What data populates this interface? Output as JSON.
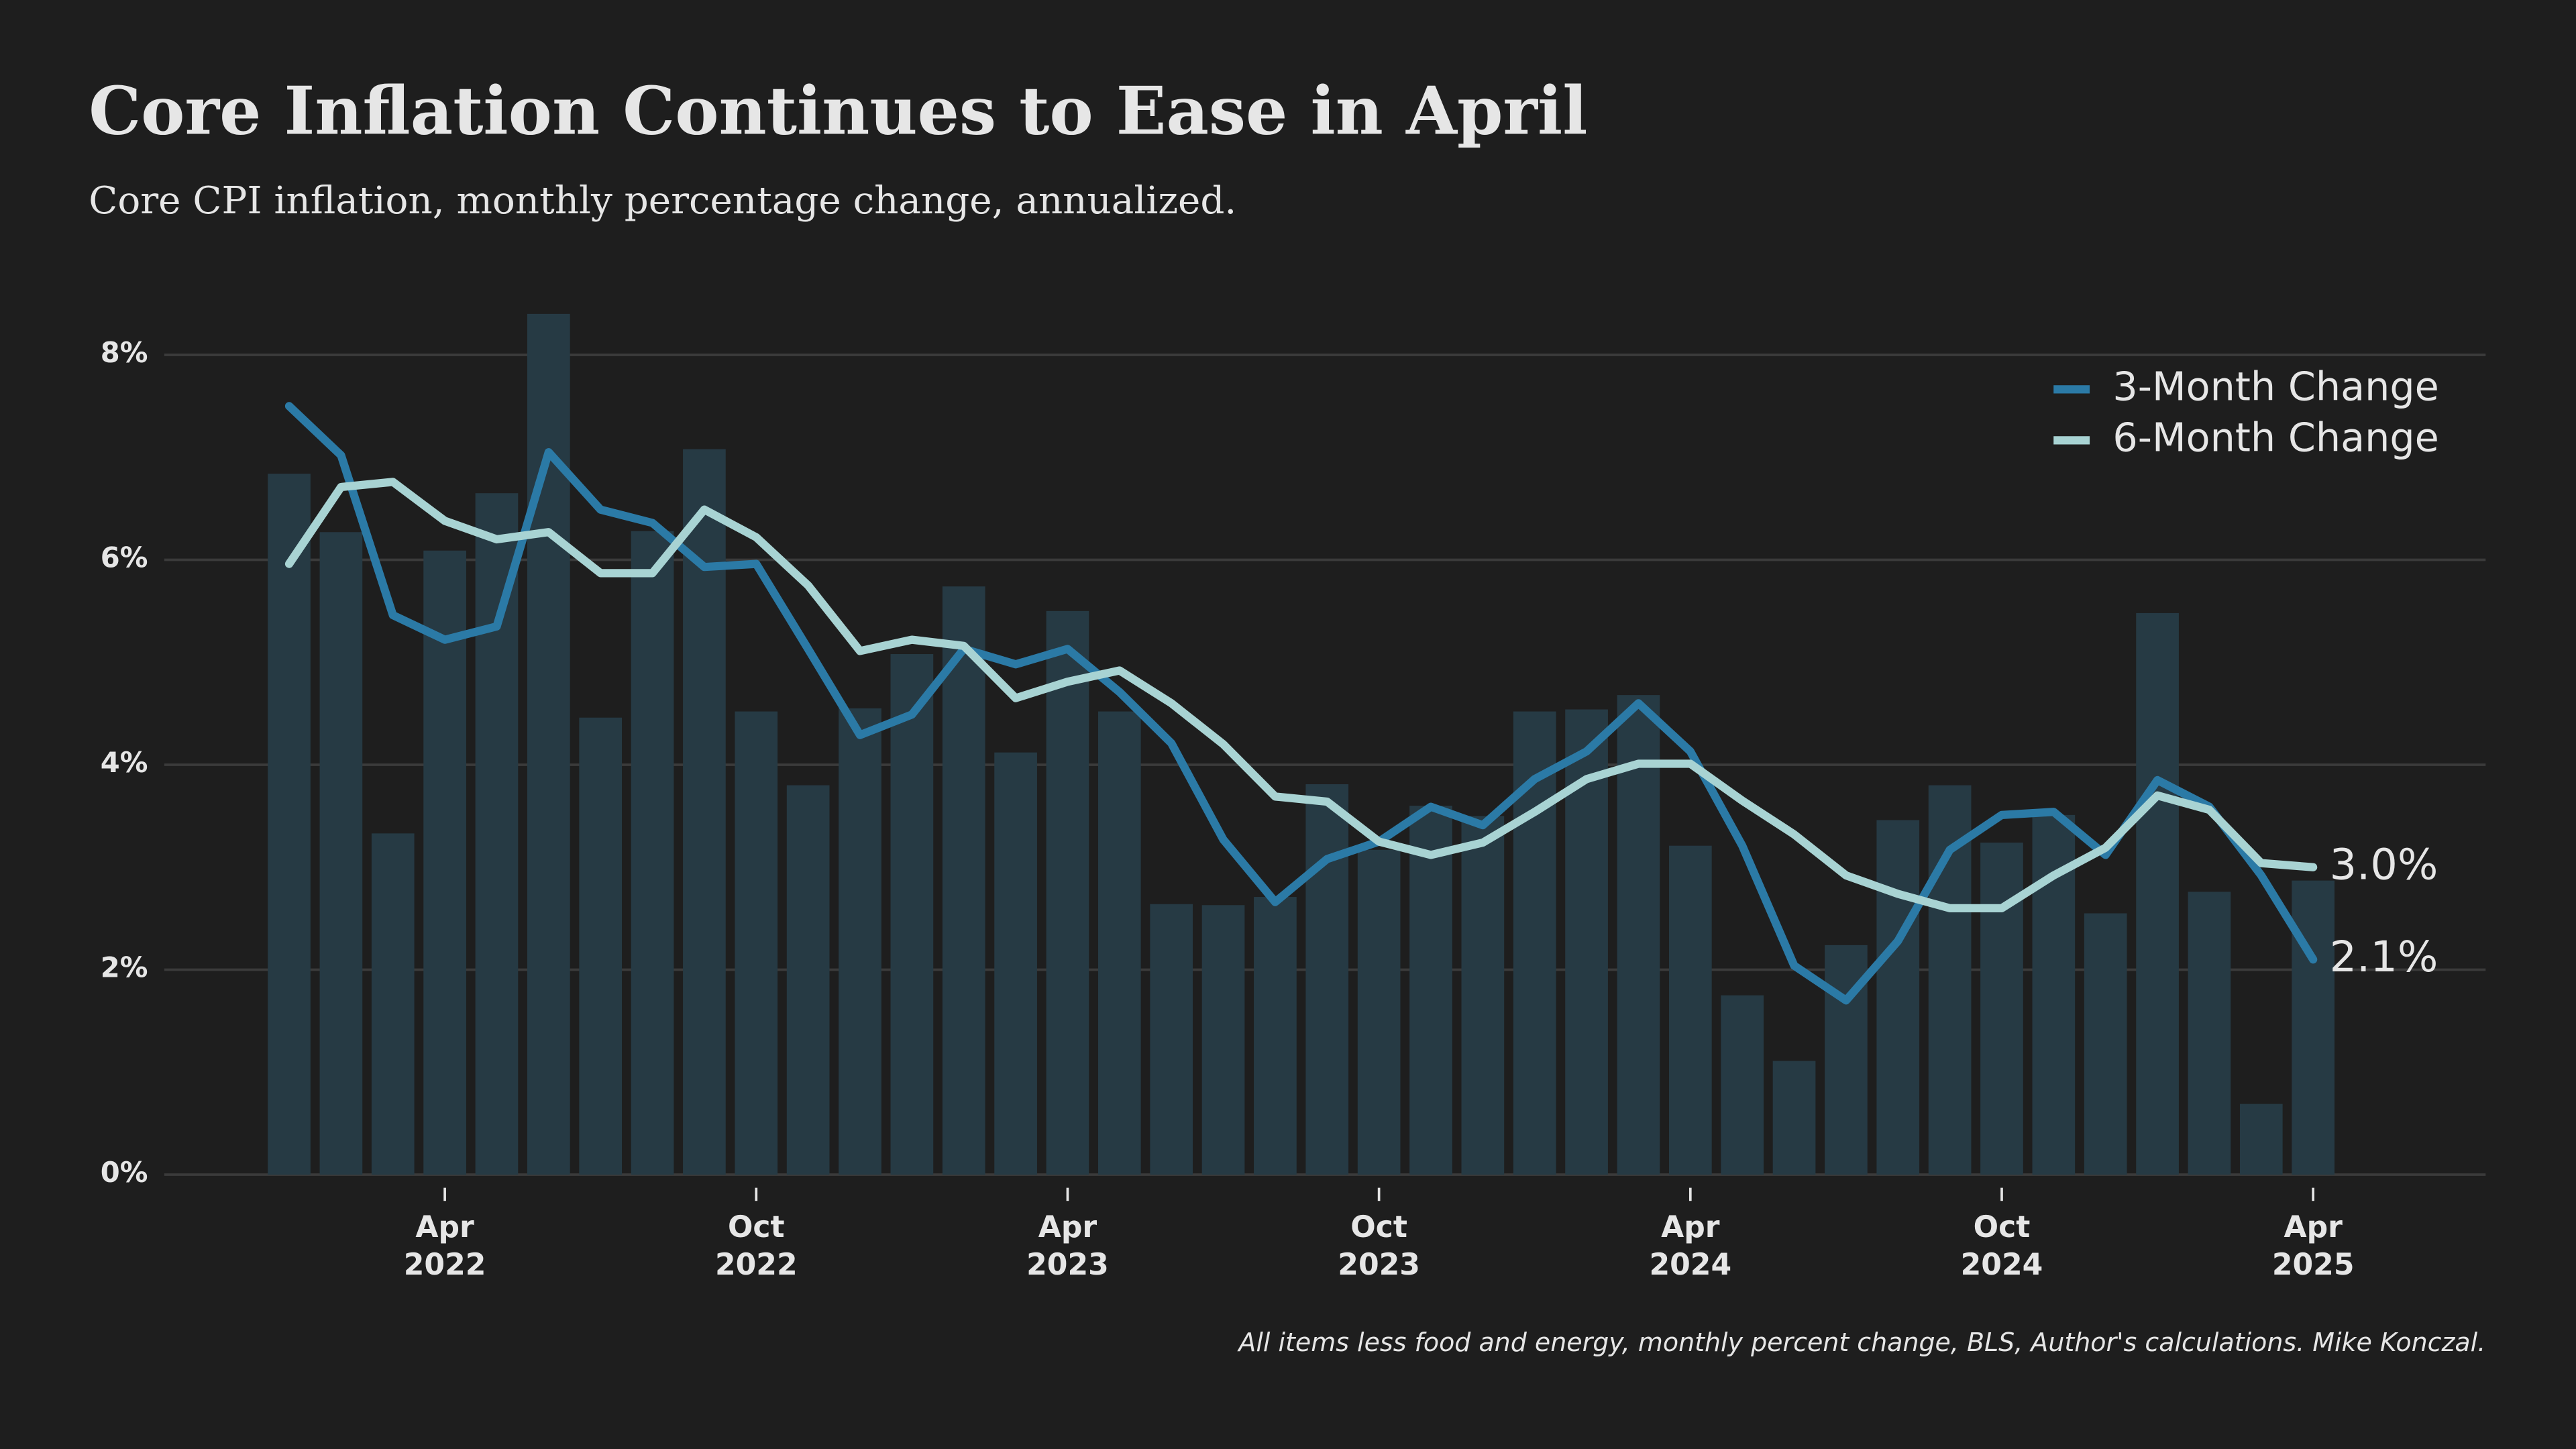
{
  "chart_data": {
    "type": "bar-line",
    "title": "Core Inflation Continues to Ease in April",
    "subtitle": "Core CPI inflation, monthly percentage change, annualized.",
    "source": "All items less food and energy, monthly percent change, BLS, Author's calculations. Mike Konczal.",
    "x": [
      "2022-01",
      "2022-02",
      "2022-03",
      "2022-04",
      "2022-05",
      "2022-06",
      "2022-07",
      "2022-08",
      "2022-09",
      "2022-10",
      "2022-11",
      "2022-12",
      "2023-01",
      "2023-02",
      "2023-03",
      "2023-04",
      "2023-05",
      "2023-06",
      "2023-07",
      "2023-08",
      "2023-09",
      "2023-10",
      "2023-11",
      "2023-12",
      "2024-01",
      "2024-02",
      "2024-03",
      "2024-04",
      "2024-05",
      "2024-06",
      "2024-07",
      "2024-08",
      "2024-09",
      "2024-10",
      "2024-11",
      "2024-12",
      "2025-01",
      "2025-02",
      "2025-03",
      "2025-04"
    ],
    "values": [
      6.84,
      6.27,
      3.33,
      6.09,
      6.65,
      8.4,
      4.46,
      6.28,
      7.08,
      4.52,
      3.8,
      4.55,
      5.08,
      5.74,
      4.12,
      5.5,
      4.52,
      2.64,
      2.63,
      2.71,
      3.81,
      3.17,
      3.6,
      3.5,
      4.52,
      4.54,
      4.68,
      3.21,
      1.75,
      1.11,
      2.24,
      3.46,
      3.8,
      3.24,
      3.51,
      2.55,
      5.48,
      2.76,
      0.69,
      2.87
    ],
    "color": "#263a44",
    "series": [
      {
        "name": "3-Month Change",
        "color": "#2b7aa6",
        "end_label": "2.1%",
        "values": [
          7.5,
          7.02,
          5.46,
          5.22,
          5.35,
          7.05,
          6.49,
          6.36,
          5.93,
          5.96,
          5.13,
          4.29,
          4.49,
          5.13,
          4.98,
          5.13,
          4.71,
          4.21,
          3.27,
          2.66,
          3.08,
          3.25,
          3.59,
          3.41,
          3.86,
          4.13,
          4.6,
          4.13,
          3.21,
          2.04,
          1.7,
          2.28,
          3.17,
          3.51,
          3.54,
          3.12,
          3.85,
          3.59,
          2.92,
          2.1
        ]
      },
      {
        "name": "6-Month Change",
        "color": "#a8d3d3",
        "end_label": "3.0%",
        "values": [
          5.96,
          6.71,
          6.76,
          6.38,
          6.2,
          6.27,
          5.87,
          5.87,
          6.49,
          6.22,
          5.75,
          5.11,
          5.22,
          5.16,
          4.65,
          4.81,
          4.92,
          4.6,
          4.2,
          3.69,
          3.64,
          3.25,
          3.12,
          3.24,
          3.54,
          3.86,
          4.01,
          4.01,
          3.65,
          3.32,
          2.92,
          2.74,
          2.6,
          2.6,
          2.92,
          3.19,
          3.7,
          3.56,
          3.04,
          3.0
        ]
      }
    ],
    "ylim": [
      0,
      8
    ],
    "yticks": [
      {
        "value": 0,
        "label": "0%"
      },
      {
        "value": 2,
        "label": "2%"
      },
      {
        "value": 4,
        "label": "4%"
      },
      {
        "value": 6,
        "label": "6%"
      },
      {
        "value": 8,
        "label": "8%"
      }
    ],
    "xticks": [
      {
        "value": "2022-04",
        "label": "Apr 2022"
      },
      {
        "value": "2022-10",
        "label": "Oct 2022"
      },
      {
        "value": "2023-04",
        "label": "Apr 2023"
      },
      {
        "value": "2023-10",
        "label": "Oct 2023"
      },
      {
        "value": "2024-04",
        "label": "Apr 2024"
      },
      {
        "value": "2024-10",
        "label": "Oct 2024"
      },
      {
        "value": "2025-04",
        "label": "Apr 2025"
      }
    ],
    "grid": true,
    "legend": "top-right"
  }
}
